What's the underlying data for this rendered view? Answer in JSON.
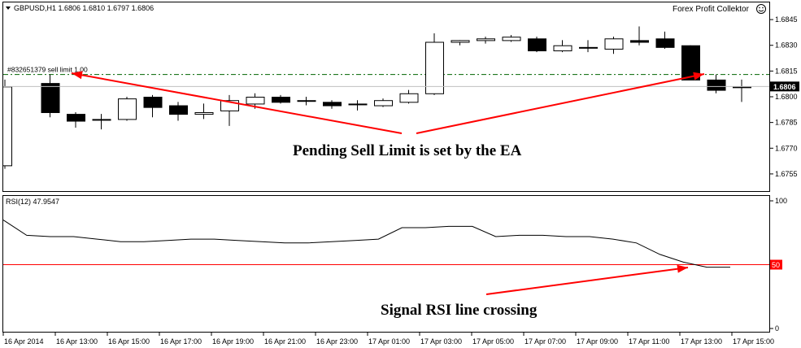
{
  "header": {
    "symbol_info": "GBPUSD,H1  1.6806 1.6810 1.6797 1.6806",
    "expert_name": "Forex Profit Collektor",
    "smiley_icon": "smiley-face-icon"
  },
  "order_line": {
    "label": "#832651379 sell limit 1.00",
    "price": 1.6813,
    "color": "#006400"
  },
  "bid_price": {
    "label": "1.6806",
    "value": 1.6806
  },
  "annotations": {
    "price_note": "Pending Sell Limit is set by the EA",
    "rsi_note": "Signal RSI line crossing"
  },
  "arrow_color": "#ff0000",
  "chart_data": [
    {
      "type": "candlestick",
      "title": "GBPUSD,H1",
      "ylim": [
        1.6745,
        1.6855
      ],
      "y_ticks": [
        "1.6845",
        "1.6830",
        "1.6815",
        "1.6800",
        "1.6785",
        "1.6770",
        "1.6755"
      ],
      "x_ticks": [
        "16 Apr 2014",
        "16 Apr 13:00",
        "16 Apr 15:00",
        "16 Apr 17:00",
        "16 Apr 19:00",
        "16 Apr 21:00",
        "16 Apr 23:00",
        "17 Apr 01:00",
        "17 Apr 03:00",
        "17 Apr 05:00",
        "17 Apr 07:00",
        "17 Apr 09:00",
        "17 Apr 11:00",
        "17 Apr 13:00",
        "17 Apr 15:00"
      ],
      "candles": [
        {
          "o": 1.676,
          "h": 1.681,
          "l": 1.6758,
          "c": 1.6806
        },
        {
          "o": 1.6808,
          "h": 1.6813,
          "l": 1.6788,
          "c": 1.6791
        },
        {
          "o": 1.679,
          "h": 1.6791,
          "l": 1.6782,
          "c": 1.6786
        },
        {
          "o": 1.6787,
          "h": 1.679,
          "l": 1.6781,
          "c": 1.6787
        },
        {
          "o": 1.6787,
          "h": 1.68,
          "l": 1.6786,
          "c": 1.6799
        },
        {
          "o": 1.68,
          "h": 1.6801,
          "l": 1.6788,
          "c": 1.6794
        },
        {
          "o": 1.6795,
          "h": 1.6797,
          "l": 1.6786,
          "c": 1.679
        },
        {
          "o": 1.679,
          "h": 1.6796,
          "l": 1.6787,
          "c": 1.6791
        },
        {
          "o": 1.6792,
          "h": 1.6801,
          "l": 1.6783,
          "c": 1.6798
        },
        {
          "o": 1.6796,
          "h": 1.6802,
          "l": 1.6793,
          "c": 1.68
        },
        {
          "o": 1.68,
          "h": 1.6801,
          "l": 1.6796,
          "c": 1.6797
        },
        {
          "o": 1.6798,
          "h": 1.68,
          "l": 1.6795,
          "c": 1.6798
        },
        {
          "o": 1.6797,
          "h": 1.6798,
          "l": 1.6793,
          "c": 1.6795
        },
        {
          "o": 1.6796,
          "h": 1.6798,
          "l": 1.6792,
          "c": 1.6796
        },
        {
          "o": 1.6795,
          "h": 1.6799,
          "l": 1.6794,
          "c": 1.6798
        },
        {
          "o": 1.6797,
          "h": 1.6804,
          "l": 1.6796,
          "c": 1.6802
        },
        {
          "o": 1.6802,
          "h": 1.6837,
          "l": 1.6801,
          "c": 1.6832
        },
        {
          "o": 1.6832,
          "h": 1.6833,
          "l": 1.683,
          "c": 1.6833
        },
        {
          "o": 1.6833,
          "h": 1.6835,
          "l": 1.6831,
          "c": 1.6834
        },
        {
          "o": 1.6833,
          "h": 1.6836,
          "l": 1.6832,
          "c": 1.6835
        },
        {
          "o": 1.6834,
          "h": 1.6835,
          "l": 1.6826,
          "c": 1.6827
        },
        {
          "o": 1.6827,
          "h": 1.6833,
          "l": 1.6826,
          "c": 1.683
        },
        {
          "o": 1.6829,
          "h": 1.6833,
          "l": 1.6826,
          "c": 1.6829
        },
        {
          "o": 1.6828,
          "h": 1.6835,
          "l": 1.6825,
          "c": 1.6834
        },
        {
          "o": 1.6833,
          "h": 1.6841,
          "l": 1.683,
          "c": 1.6832
        },
        {
          "o": 1.6834,
          "h": 1.6838,
          "l": 1.6828,
          "c": 1.6829
        },
        {
          "o": 1.683,
          "h": 1.683,
          "l": 1.681,
          "c": 1.681
        },
        {
          "o": 1.681,
          "h": 1.6813,
          "l": 1.6802,
          "c": 1.6804
        },
        {
          "o": 1.6806,
          "h": 1.681,
          "l": 1.6797,
          "c": 1.6806
        }
      ]
    },
    {
      "type": "line",
      "title": "RSI(12) 47.9547",
      "ylim": [
        0,
        100
      ],
      "y_ticks": [
        "100",
        "0"
      ],
      "level": 50,
      "level_label": "50",
      "level_color": "#ff0000",
      "line_color": "#000000",
      "values": [
        85,
        73,
        72,
        72,
        70,
        68,
        68,
        69,
        70,
        70,
        69,
        68,
        67,
        67,
        68,
        69,
        70,
        79,
        79,
        80,
        80,
        72,
        73,
        73,
        72,
        72,
        70,
        67,
        58,
        52,
        48,
        48
      ]
    }
  ]
}
